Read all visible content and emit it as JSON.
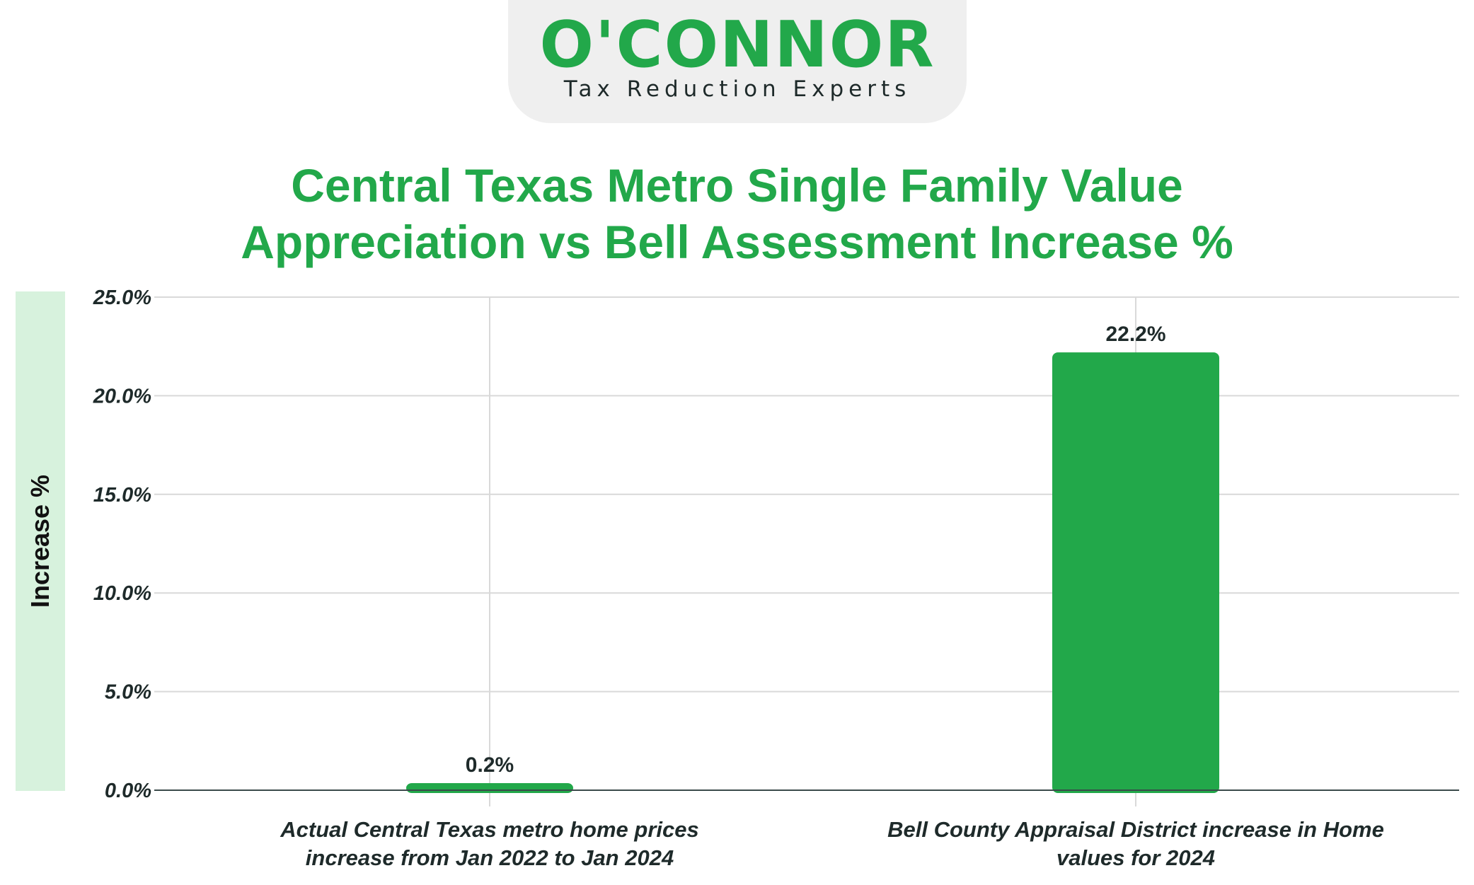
{
  "logo": {
    "wordmark": "O'CONNOR",
    "tagline": "Tax Reduction Experts"
  },
  "colors": {
    "brand_green": "#22a84a",
    "bar_green": "#22a84a",
    "ylabel_band": "#d7f2dd",
    "grid": "#d9d9d9",
    "text_dark": "#1e2a2a"
  },
  "chart_data": {
    "type": "bar",
    "title_lines": [
      "Central Texas Metro Single Family Value",
      "Appreciation vs Bell Assessment Increase %"
    ],
    "ylabel": "Increase %",
    "xlabel": "",
    "ylim": [
      0,
      25
    ],
    "yticks": [
      "25.0%",
      "20.0%",
      "15.0%",
      "10.0%",
      "5.0%",
      "0.0%"
    ],
    "ytick_values": [
      25,
      20,
      15,
      10,
      5,
      0
    ],
    "categories": [
      [
        "Actual Central Texas metro home prices",
        "increase from Jan 2022 to Jan 2024"
      ],
      [
        "Bell County Appraisal District increase in Home",
        "values for 2024"
      ]
    ],
    "values": [
      0.2,
      22.2
    ],
    "value_labels": [
      "0.2%",
      "22.2%"
    ],
    "grid": true,
    "legend": "none"
  }
}
